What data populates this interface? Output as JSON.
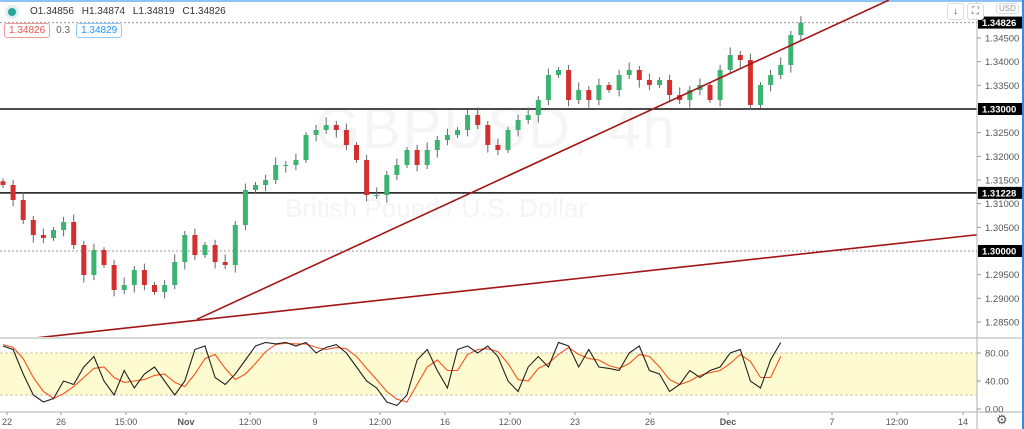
{
  "header": {
    "ohlc": {
      "open": "O1.34856",
      "high": "H1.34874",
      "low": "L1.34819",
      "close": "C1.34826"
    },
    "bid": "1.34826",
    "spread": "0.3",
    "ask": "1.34829",
    "watermark_symbol": "GBPUSD, 4h",
    "watermark_name": "British Pound / U.S. Dollar",
    "currency": "USD",
    "icons": [
      "arrow-down-icon",
      "fullscreen-icon",
      "gear-icon"
    ]
  },
  "colors": {
    "up": "#26a69a",
    "candle_up": "#3cb371",
    "candle_down": "#d32f2f",
    "trendline": "#a31515",
    "stoch_k": "#222222",
    "stoch_d": "#f4511e",
    "band": "#fffbd0"
  },
  "chart_data": [
    {
      "type": "candlestick",
      "price_axis": {
        "ticks": [
          "1.34500",
          "1.34000",
          "1.33500",
          "1.32500",
          "1.32000",
          "1.31500",
          "1.31000",
          "1.30500",
          "1.29500",
          "1.29000",
          "1.28500"
        ],
        "labels": [
          "1.34826",
          "1.33000",
          "1.31228",
          "1.30000"
        ]
      },
      "time_axis": [
        "22",
        "26",
        "15:00",
        "Nov",
        "12:00",
        "9",
        "12:00",
        "16",
        "12:00",
        "23",
        "26",
        "Dec",
        "7",
        "12:00",
        "14"
      ],
      "closes": [
        1.31394,
        1.31077,
        1.30655,
        1.30338,
        1.30274,
        1.30443,
        1.30613,
        1.30127,
        1.29493,
        1.30021,
        1.29704,
        1.29176,
        1.29281,
        1.29598,
        1.29281,
        1.29133,
        1.29281,
        1.29767,
        1.30338,
        1.29915,
        1.30127,
        1.29767,
        1.29704,
        1.30549,
        1.31289,
        1.31394,
        1.315,
        1.31817,
        1.31817,
        1.31922,
        1.32451,
        1.32556,
        1.32662,
        1.32556,
        1.32239,
        1.31922,
        1.31183,
        1.31183,
        1.31606,
        1.31817,
        1.32134,
        1.31817,
        1.32134,
        1.32345,
        1.32451,
        1.32556,
        1.32873,
        1.32662,
        1.32239,
        1.32134,
        1.32556,
        1.32768,
        1.32873,
        1.3319,
        1.33718,
        1.33824,
        1.3319,
        1.33401,
        1.3319,
        1.33507,
        1.33401,
        1.33718,
        1.33824,
        1.33613,
        1.33507,
        1.33613,
        1.33296,
        1.3319,
        1.33401,
        1.33507,
        1.3319,
        1.33824,
        1.34141,
        1.34035,
        1.33085,
        1.33507,
        1.33718,
        1.3393,
        1.34563,
        1.34826
      ],
      "horizontal_lines": [
        {
          "price": 1.34826,
          "style": "dotted"
        },
        {
          "price": 1.33,
          "style": "solid"
        },
        {
          "price": 1.31228,
          "style": "solid"
        },
        {
          "price": 1.3,
          "style": "dotted"
        }
      ],
      "trendlines": [
        {
          "from": {
            "bar": 19.2,
            "price": 1.28556
          },
          "to": {
            "bar": 87.7,
            "price": 1.353
          }
        },
        {
          "from": {
            "bar": 3.2,
            "price": 1.28162
          },
          "to": {
            "bar": 100.7,
            "price": 1.30443
          }
        }
      ]
    },
    {
      "type": "line",
      "name": "stochastic",
      "y_ticks": [
        "80.00",
        "40.00",
        "0.00"
      ],
      "ylim": [
        0,
        100
      ],
      "band": [
        20,
        80
      ],
      "k": [
        90,
        85,
        50,
        20,
        10,
        15,
        40,
        35,
        60,
        75,
        40,
        20,
        55,
        30,
        50,
        60,
        40,
        20,
        40,
        85,
        90,
        45,
        35,
        50,
        70,
        90,
        95,
        93,
        95,
        90,
        95,
        80,
        88,
        92,
        80,
        60,
        40,
        30,
        10,
        5,
        20,
        70,
        85,
        55,
        30,
        85,
        90,
        80,
        90,
        75,
        40,
        25,
        60,
        75,
        60,
        95,
        90,
        60,
        85,
        60,
        58,
        55,
        80,
        90,
        55,
        50,
        25,
        35,
        55,
        45,
        55,
        60,
        80,
        85,
        40,
        30,
        70,
        95
      ],
      "d": [
        92,
        88,
        72,
        45,
        25,
        15,
        22,
        32,
        45,
        58,
        60,
        45,
        38,
        40,
        42,
        48,
        50,
        38,
        32,
        50,
        72,
        78,
        58,
        42,
        50,
        65,
        82,
        92,
        94,
        93,
        93,
        88,
        85,
        88,
        86,
        75,
        58,
        42,
        25,
        14,
        10,
        35,
        60,
        70,
        55,
        55,
        78,
        85,
        86,
        82,
        65,
        42,
        40,
        58,
        65,
        78,
        88,
        78,
        72,
        70,
        62,
        58,
        65,
        78,
        75,
        60,
        42,
        35,
        40,
        48,
        52,
        55,
        65,
        78,
        68,
        45,
        45,
        75
      ]
    }
  ]
}
